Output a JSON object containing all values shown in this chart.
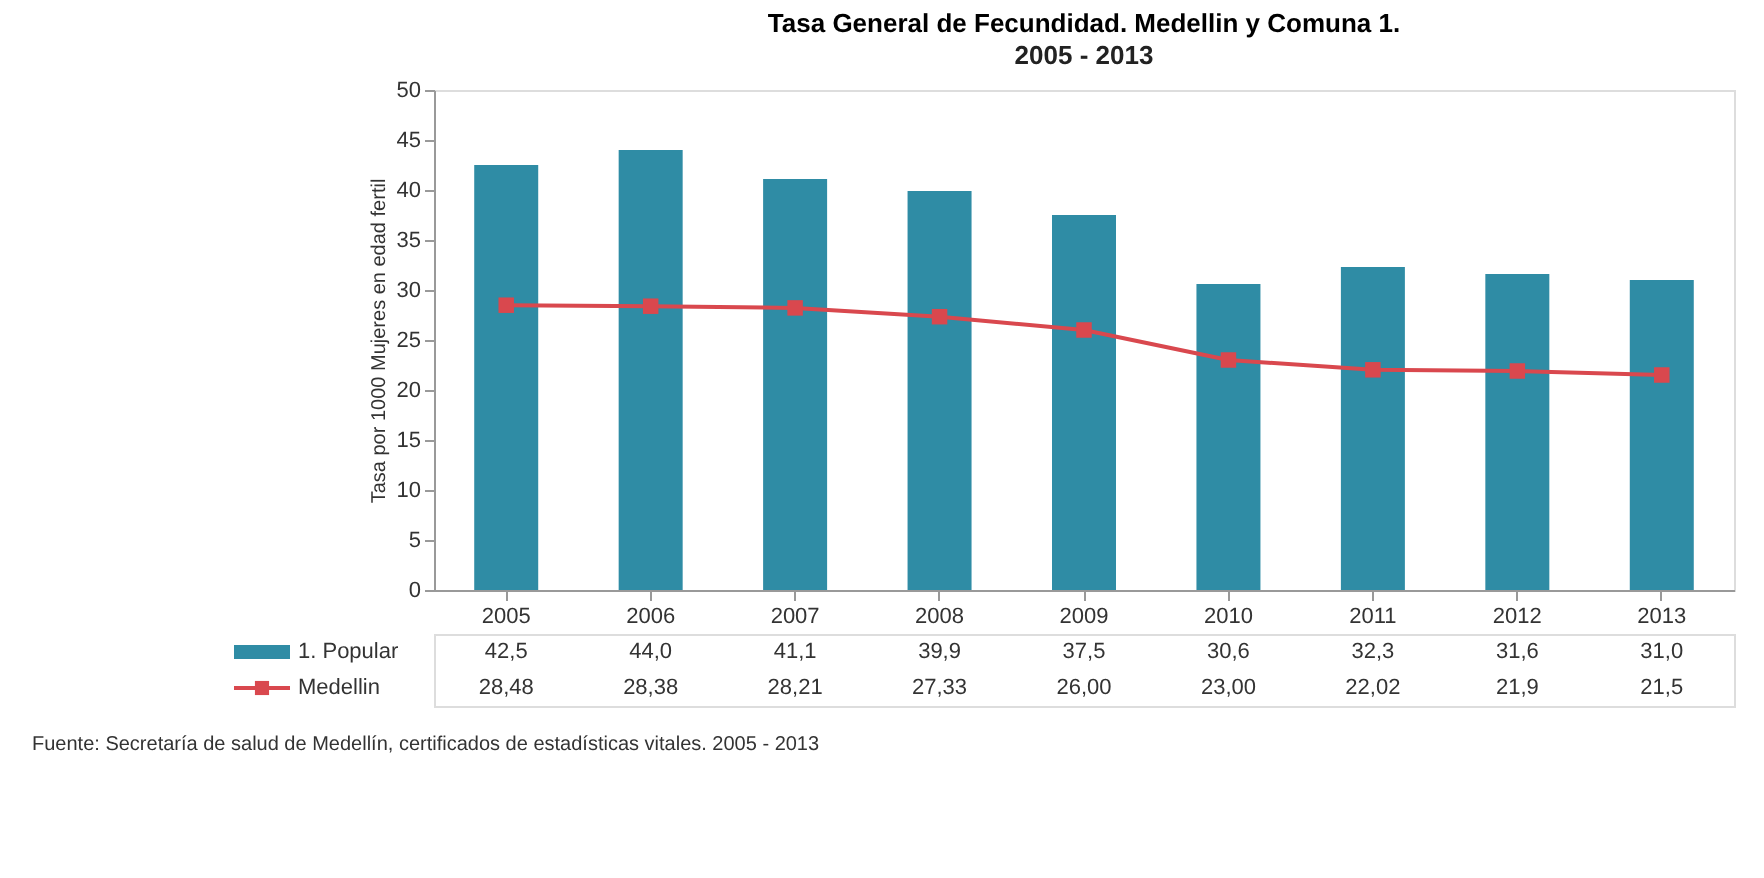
{
  "chart_data": {
    "type": "bar",
    "title": "Tasa General de Fecundidad. Medellin y Comuna 1.",
    "subtitle": "2005 - 2013",
    "ylabel": "Tasa por 1000 Mujeres en edad fertil",
    "categories": [
      "2005",
      "2006",
      "2007",
      "2008",
      "2009",
      "2010",
      "2011",
      "2012",
      "2013"
    ],
    "series": [
      {
        "name": "1. Popular",
        "color": "#2f8ca5",
        "values": [
          42.5,
          44.0,
          41.1,
          39.9,
          37.5,
          30.6,
          32.3,
          31.6,
          31.0
        ],
        "value_labels": [
          "42,5",
          "44,0",
          "41,1",
          "39,9",
          "37,5",
          "30,6",
          "32,3",
          "31,6",
          "31,0"
        ]
      },
      {
        "name": "Medellin",
        "type": "line",
        "color": "#d9484e",
        "marker": "square",
        "values": [
          28.48,
          28.38,
          28.21,
          27.33,
          26.0,
          23.0,
          22.02,
          21.9,
          21.5
        ],
        "value_labels": [
          "28,48",
          "28,38",
          "28,21",
          "27,33",
          "26,00",
          "23,00",
          "22,02",
          "21,9",
          "21,5"
        ]
      }
    ],
    "ylim": [
      0,
      50
    ],
    "yticks": [
      0,
      5,
      10,
      15,
      20,
      25,
      30,
      35,
      40,
      45,
      50
    ],
    "grid": false,
    "legend": "bottom left",
    "annotations": [
      "Fuente: Secretaría de salud de Medellín, certificados de estadísticas vitales. 2005 - 2013"
    ]
  }
}
